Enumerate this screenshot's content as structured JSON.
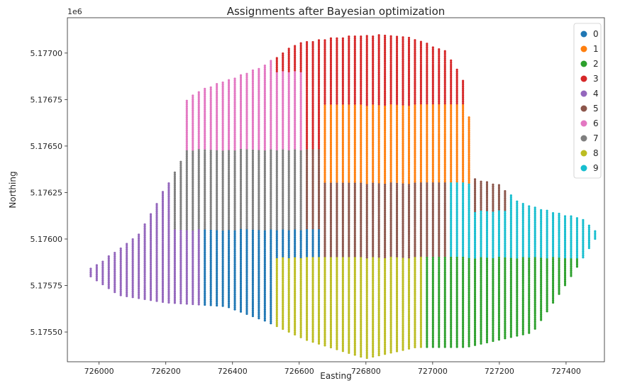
{
  "chart_data": {
    "type": "scatter",
    "title": "Assignments after Bayesian optimization",
    "xlabel": "Easting",
    "ylabel": "Northing",
    "y_offset_label": "1e6",
    "xlim": [
      725905,
      727515
    ],
    "ylim": [
      5175340,
      5177190
    ],
    "x_ticks": [
      726000,
      726200,
      726400,
      726600,
      726800,
      727000,
      727200,
      727400
    ],
    "x_tick_labels": [
      "726000",
      "726200",
      "726400",
      "726600",
      "726800",
      "727000",
      "727200",
      "727400"
    ],
    "y_ticks": [
      5175500,
      5175750,
      5176000,
      5176250,
      5176500,
      5176750,
      5177000
    ],
    "y_tick_labels": [
      "5.17550",
      "5.17575",
      "5.17600",
      "5.17625",
      "5.17650",
      "5.17675",
      "5.17700"
    ],
    "grid": false,
    "legend_position": "top-right",
    "legend": [
      "0",
      "1",
      "2",
      "3",
      "4",
      "5",
      "6",
      "7",
      "8",
      "9"
    ],
    "colors": [
      "#1f77b4",
      "#ff7f0e",
      "#2ca02c",
      "#d62728",
      "#9467bd",
      "#8c564b",
      "#e377c2",
      "#7f7f7f",
      "#bcbd22",
      "#17becf"
    ],
    "marker": "dot",
    "swath_spacing_m": 18,
    "field_outline": {
      "top": [
        [
          725975,
          5175840
        ],
        [
          726120,
          5176030
        ],
        [
          726190,
          5176250
        ],
        [
          726245,
          5176420
        ],
        [
          726210,
          5176680
        ],
        [
          726290,
          5176790
        ],
        [
          726480,
          5176920
        ],
        [
          726600,
          5177060
        ],
        [
          726800,
          5177100
        ],
        [
          726930,
          5177090
        ],
        [
          727040,
          5177010
        ],
        [
          727090,
          5176870
        ],
        [
          727110,
          5176650
        ],
        [
          727080,
          5176430
        ],
        [
          727100,
          5176340
        ],
        [
          727200,
          5176290
        ],
        [
          727260,
          5176200
        ],
        [
          727370,
          5176140
        ],
        [
          727450,
          5176110
        ],
        [
          727490,
          5176040
        ]
      ],
      "bottom": [
        [
          725975,
          5175800
        ],
        [
          726060,
          5175700
        ],
        [
          726200,
          5175660
        ],
        [
          726380,
          5175640
        ],
        [
          726500,
          5175560
        ],
        [
          726620,
          5175460
        ],
        [
          726800,
          5175360
        ],
        [
          726950,
          5175420
        ],
        [
          727100,
          5175420
        ],
        [
          727300,
          5175500
        ],
        [
          727400,
          5175760
        ],
        [
          727490,
          5176010
        ]
      ]
    },
    "clusters": [
      {
        "label": "0",
        "x": [
          726300,
          726520
        ],
        "y_split": [
          5175640,
          5176050
        ],
        "note_x": 726410
      },
      {
        "label": "1",
        "x": [
          726660,
          727110
        ],
        "y_split": [
          5176300,
          5176720
        ]
      },
      {
        "label": "2",
        "x": [
          726960,
          727400
        ],
        "y_split": [
          5175410,
          5175900
        ]
      },
      {
        "label": "3",
        "x": [
          726520,
          727080
        ],
        "y_split": [
          5176720,
          5177100
        ]
      },
      {
        "label": "4",
        "x": [
          725975,
          726300
        ],
        "y_split": [
          5175650,
          5176250
        ]
      },
      {
        "label": "5",
        "x": [
          726520,
          727230
        ],
        "y_split": [
          5175900,
          5176300
        ]
      },
      {
        "label": "6",
        "x": [
          726210,
          726700
        ],
        "y_split": [
          5176480,
          5176920
        ]
      },
      {
        "label": "7",
        "x": [
          726210,
          726620
        ],
        "y_split": [
          5176050,
          5176480
        ]
      },
      {
        "label": "8",
        "x": [
          726500,
          726980
        ],
        "y_split": [
          5175360,
          5175900
        ]
      },
      {
        "label": "9",
        "x": [
          726980,
          727490
        ],
        "y_split": [
          5175900,
          5176290
        ]
      }
    ]
  }
}
